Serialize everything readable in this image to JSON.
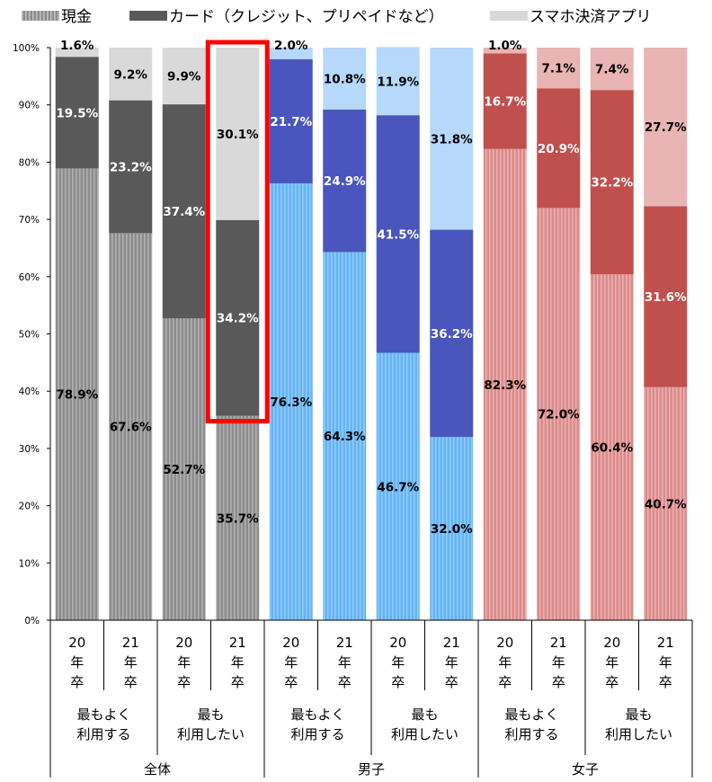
{
  "chart_data": {
    "type": "bar",
    "stacked": true,
    "title": "",
    "legend": [
      {
        "name": "現金",
        "pattern": "striped"
      },
      {
        "name": "カード（クレジット、プリペイドなど）",
        "pattern": "solid-dark"
      },
      {
        "name": "スマホ決済アプリ",
        "pattern": "solid-light"
      }
    ],
    "legend_position": "top",
    "y_ticks": [
      "0%",
      "10%",
      "20%",
      "30%",
      "40%",
      "50%",
      "60%",
      "70%",
      "80%",
      "90%",
      "100%"
    ],
    "ylim": [
      0,
      100
    ],
    "grid": false,
    "categories": [
      {
        "year": [
          "20",
          "年",
          "卒"
        ],
        "question": [
          "最もよく",
          "利用する"
        ],
        "group": "全体"
      },
      {
        "year": [
          "21",
          "年",
          "卒"
        ],
        "question": [
          "最もよく",
          "利用する"
        ],
        "group": "全体"
      },
      {
        "year": [
          "20",
          "年",
          "卒"
        ],
        "question": [
          "最も",
          "利用したい"
        ],
        "group": "全体"
      },
      {
        "year": [
          "21",
          "年",
          "卒"
        ],
        "question": [
          "最も",
          "利用したい"
        ],
        "group": "全体"
      },
      {
        "year": [
          "20",
          "年",
          "卒"
        ],
        "question": [
          "最もよく",
          "利用する"
        ],
        "group": "男子"
      },
      {
        "year": [
          "21",
          "年",
          "卒"
        ],
        "question": [
          "最もよく",
          "利用する"
        ],
        "group": "男子"
      },
      {
        "year": [
          "20",
          "年",
          "卒"
        ],
        "question": [
          "最も",
          "利用したい"
        ],
        "group": "男子"
      },
      {
        "year": [
          "21",
          "年",
          "卒"
        ],
        "question": [
          "最も",
          "利用したい"
        ],
        "group": "男子"
      },
      {
        "year": [
          "20",
          "年",
          "卒"
        ],
        "question": [
          "最もよく",
          "利用する"
        ],
        "group": "女子"
      },
      {
        "year": [
          "21",
          "年",
          "卒"
        ],
        "question": [
          "最もよく",
          "利用する"
        ],
        "group": "女子"
      },
      {
        "year": [
          "20",
          "年",
          "卒"
        ],
        "question": [
          "最も",
          "利用したい"
        ],
        "group": "女子"
      },
      {
        "year": [
          "21",
          "年",
          "卒"
        ],
        "question": [
          "最も",
          "利用したい"
        ],
        "group": "女子"
      }
    ],
    "question_groups": [
      {
        "lines": [
          "最もよく",
          "利用する"
        ]
      },
      {
        "lines": [
          "最も",
          "利用したい"
        ]
      },
      {
        "lines": [
          "最もよく",
          "利用する"
        ]
      },
      {
        "lines": [
          "最も",
          "利用したい"
        ]
      },
      {
        "lines": [
          "最もよく",
          "利用する"
        ]
      },
      {
        "lines": [
          "最も",
          "利用したい"
        ]
      }
    ],
    "groups": [
      "全体",
      "男子",
      "女子"
    ],
    "series": [
      {
        "name": "現金",
        "values": [
          78.9,
          67.6,
          52.7,
          35.7,
          76.3,
          64.3,
          46.7,
          32.0,
          82.3,
          72.0,
          60.4,
          40.7
        ],
        "labels": [
          "78.9%",
          "67.6%",
          "52.7%",
          "35.7%",
          "76.3%",
          "64.3%",
          "46.7%",
          "32.0%",
          "82.3%",
          "72.0%",
          "60.4%",
          "40.7%"
        ]
      },
      {
        "name": "カード（クレジット、プリペイドなど）",
        "values": [
          19.5,
          23.2,
          37.4,
          34.2,
          21.7,
          24.9,
          41.5,
          36.2,
          16.7,
          20.9,
          32.2,
          31.6
        ],
        "labels": [
          "19.5%",
          "23.2%",
          "37.4%",
          "34.2%",
          "21.7%",
          "24.9%",
          "41.5%",
          "36.2%",
          "16.7%",
          "20.9%",
          "32.2%",
          "31.6%"
        ]
      },
      {
        "name": "スマホ決済アプリ",
        "values": [
          1.6,
          9.2,
          9.9,
          30.1,
          2.0,
          10.8,
          11.9,
          31.8,
          1.0,
          7.1,
          7.4,
          27.7
        ],
        "labels": [
          "1.6%",
          "9.2%",
          "9.9%",
          "30.1%",
          "2.0%",
          "10.8%",
          "11.9%",
          "31.8%",
          "1.0%",
          "7.1%",
          "7.4%",
          "27.7%"
        ]
      }
    ],
    "group_colors": {
      "全体": {
        "cash": "#8c8c8c",
        "cash_stripe": "#b0b0b0",
        "card": "#595959",
        "app": "#d9d9d9"
      },
      "男子": {
        "cash": "#64b4f4",
        "cash_stripe": "#8fcaf8",
        "card": "#4a56bd",
        "app": "#b5d8fb"
      },
      "女子": {
        "cash": "#dc8a8a",
        "cash_stripe": "#eab0b0",
        "card": "#c0504d",
        "app": "#e8b4b4"
      }
    },
    "label_colors": {
      "cash": "#000000",
      "card": "#ffffff",
      "app": "#000000"
    },
    "highlight": {
      "category_index": 3,
      "color": "#ff0000"
    }
  }
}
